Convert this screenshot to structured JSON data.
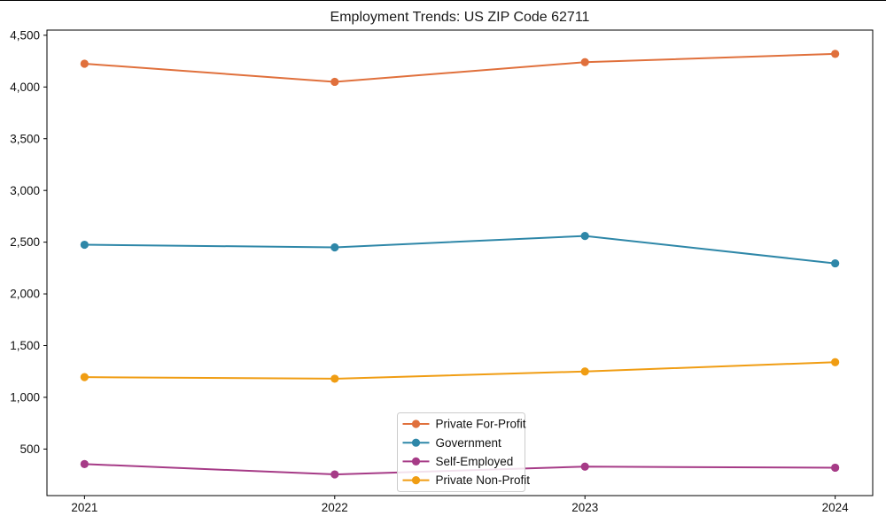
{
  "chart_data": {
    "type": "line",
    "title": "Employment Trends: US ZIP Code 62711",
    "xlabel": "",
    "ylabel": "",
    "x": [
      2021,
      2022,
      2023,
      2024
    ],
    "series": [
      {
        "name": "Private For-Profit",
        "color": "#e0703c",
        "values": [
          4225,
          4050,
          4240,
          4320
        ]
      },
      {
        "name": "Government",
        "color": "#2e87a8",
        "values": [
          2475,
          2450,
          2560,
          2295
        ]
      },
      {
        "name": "Self-Employed",
        "color": "#a63b87",
        "values": [
          355,
          255,
          330,
          320
        ]
      },
      {
        "name": "Private Non-Profit",
        "color": "#f09d13",
        "values": [
          1195,
          1180,
          1250,
          1340
        ]
      }
    ],
    "yticks": [
      500,
      1000,
      1500,
      2000,
      2500,
      3000,
      3500,
      4000,
      4500
    ],
    "ylim": [
      50,
      4550
    ],
    "xlim": [
      2020.85,
      2024.15
    ],
    "grid": false,
    "legend": {
      "position": "lower-center"
    },
    "axis_color": "#000000",
    "tick_color": "#111111",
    "legend_border_color": "#cccccc",
    "background_color": "#ffffff"
  }
}
